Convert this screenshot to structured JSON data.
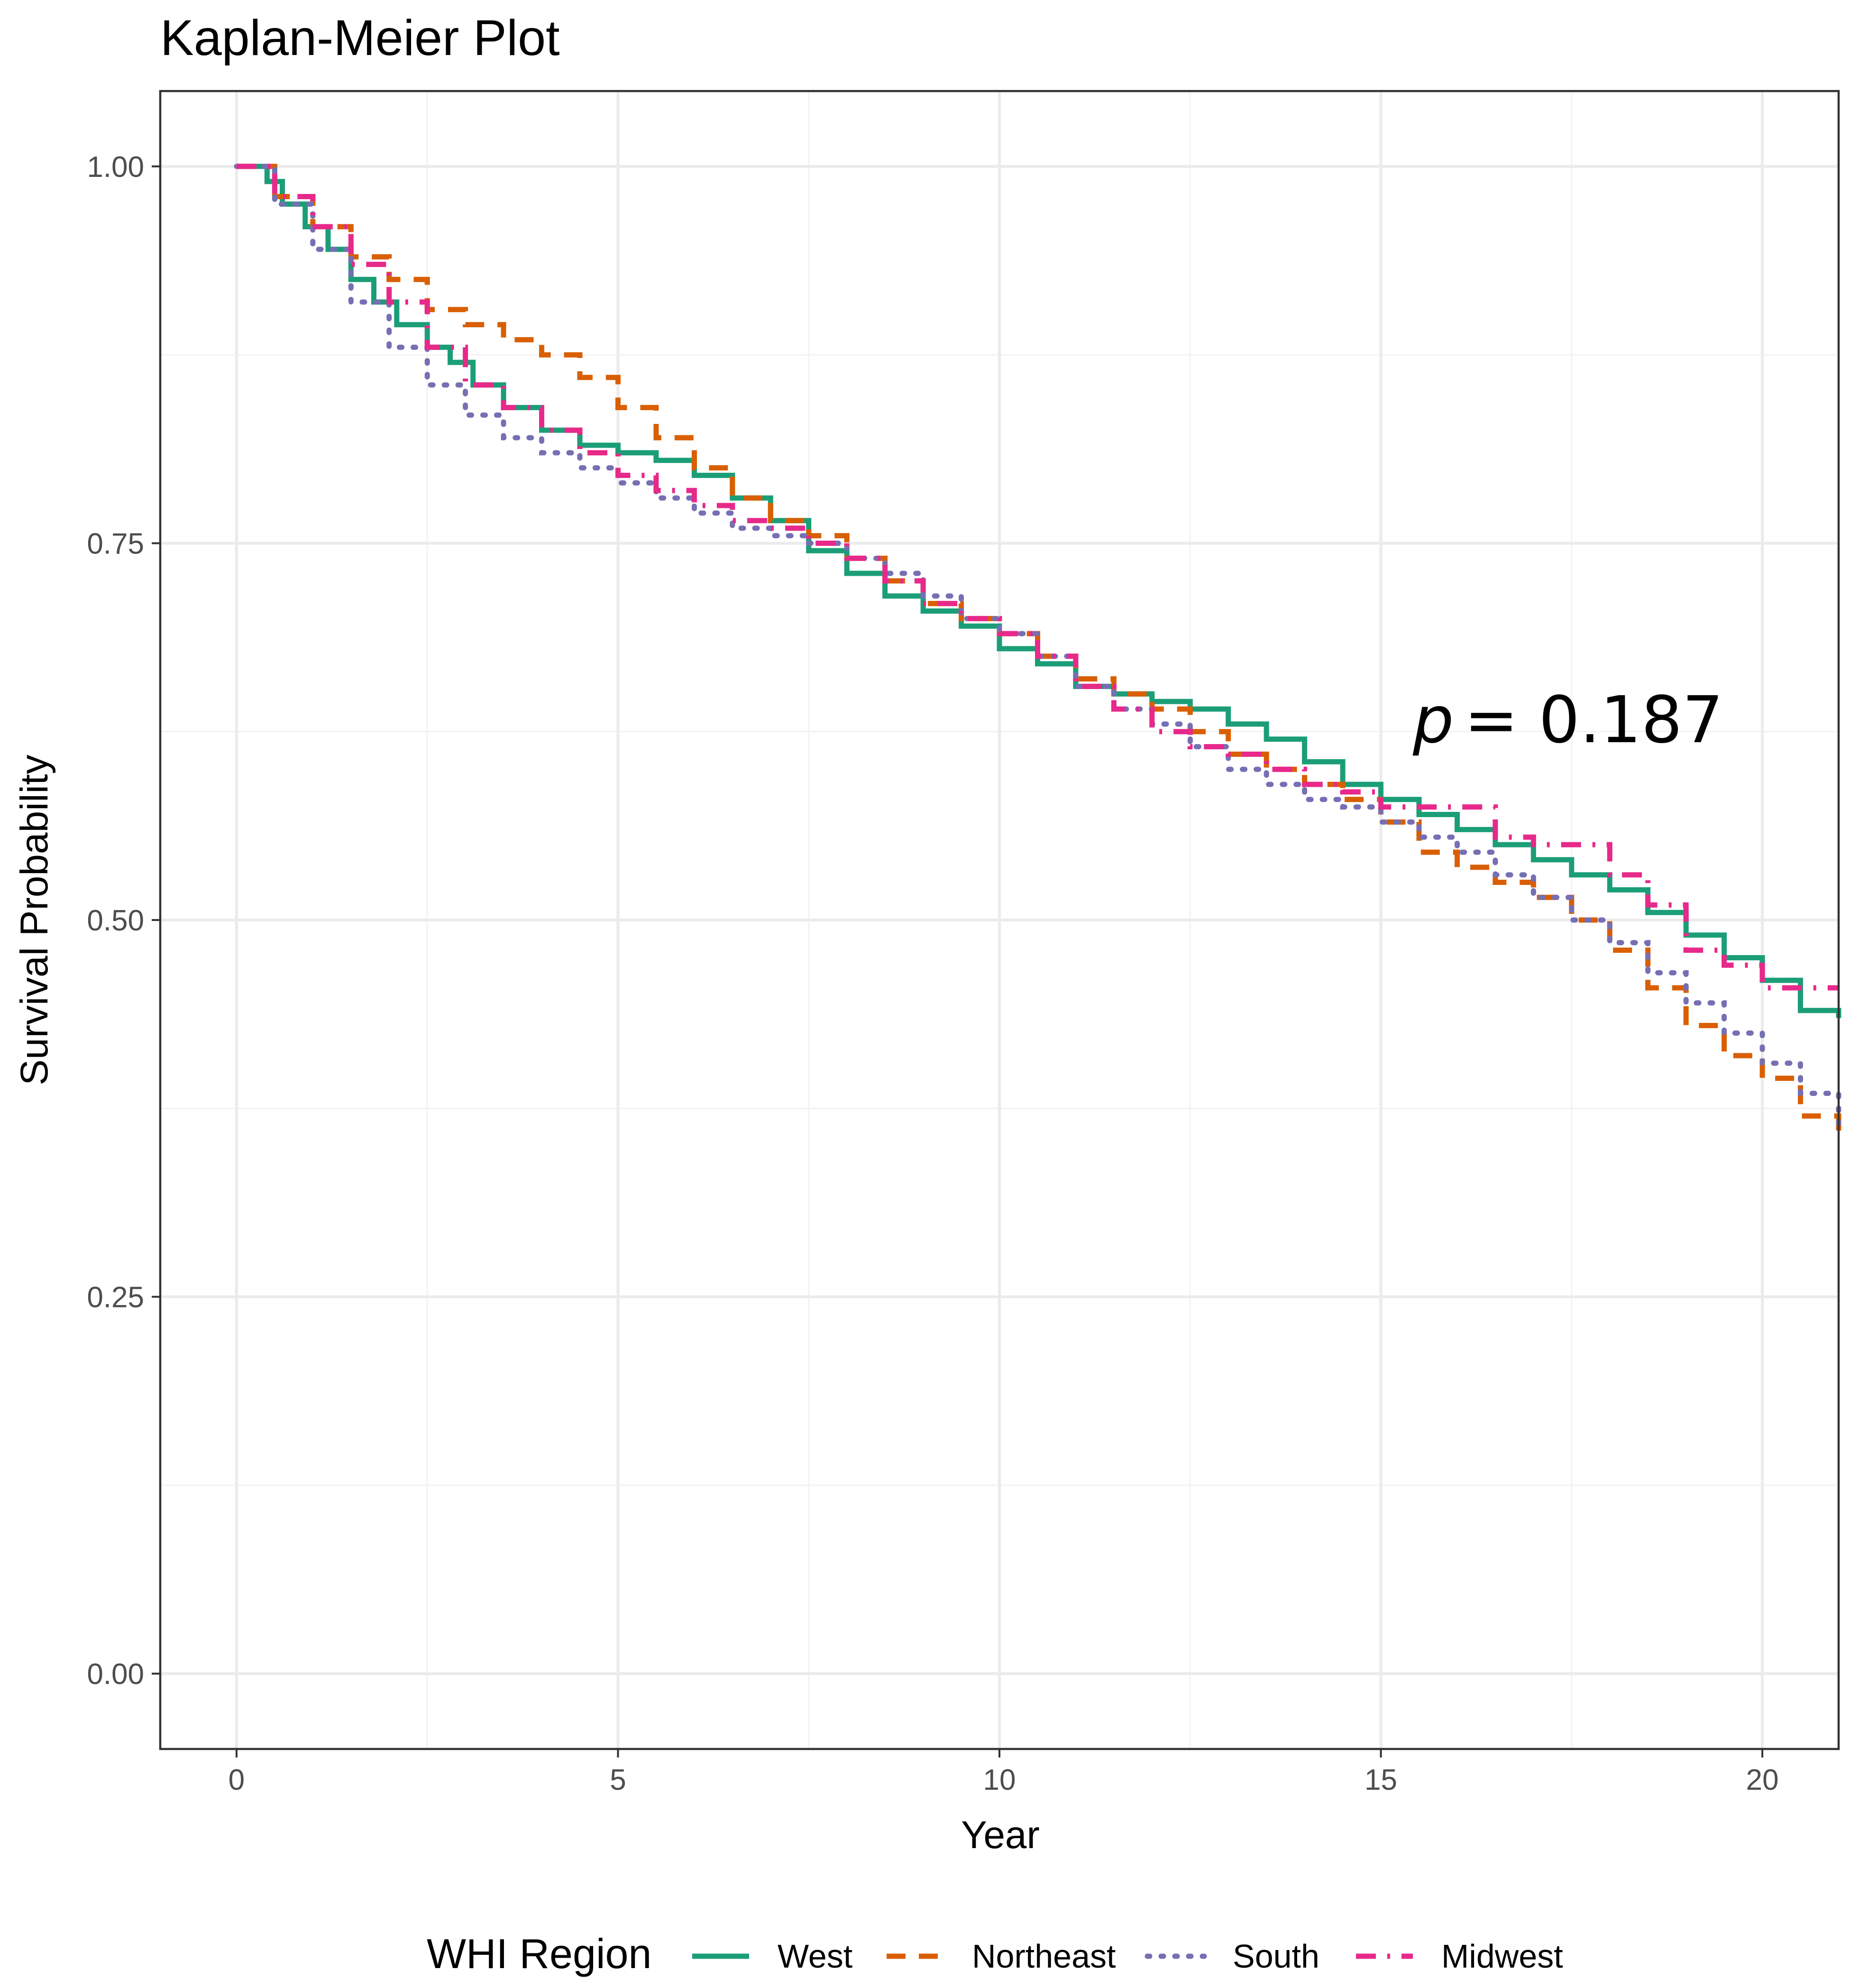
{
  "chart_data": {
    "type": "line",
    "title": "Kaplan-Meier Plot",
    "xlabel": "Year",
    "ylabel": "Survival Probability",
    "xlim": [
      -1,
      21
    ],
    "ylim": [
      -0.05,
      1.05
    ],
    "xticks": [
      0,
      5,
      10,
      15,
      20
    ],
    "xtick_labels": [
      "0",
      "5",
      "10",
      "15",
      "20"
    ],
    "yticks": [
      0,
      0.25,
      0.5,
      0.75,
      1
    ],
    "ytick_labels": [
      "0.00",
      "0.25",
      "0.50",
      "0.75",
      "1.00"
    ],
    "grid": true,
    "step": true,
    "legend": {
      "title": "WHI Region",
      "position": "bottom"
    },
    "annotation": {
      "text": "= 0.187",
      "italic_prefix": "p",
      "x": 15.4,
      "y": 0.61
    },
    "series": [
      {
        "name": "West",
        "color": "#1b9e77",
        "dash": "solid",
        "x": [
          0,
          0.4,
          0.6,
          0.9,
          1.2,
          1.5,
          1.8,
          2.1,
          2.5,
          2.8,
          3.1,
          3.5,
          4.0,
          4.5,
          5.0,
          5.5,
          6.0,
          6.5,
          7.0,
          7.5,
          8.0,
          8.5,
          9.0,
          9.5,
          10.0,
          10.5,
          11.0,
          11.5,
          12.0,
          12.5,
          13.0,
          13.5,
          14.0,
          14.5,
          15.0,
          15.5,
          16.0,
          16.5,
          17.0,
          17.5,
          18.0,
          18.5,
          19.0,
          19.5,
          20.0,
          20.5,
          21
        ],
        "y": [
          1.0,
          0.99,
          0.975,
          0.96,
          0.945,
          0.925,
          0.91,
          0.895,
          0.88,
          0.87,
          0.855,
          0.84,
          0.825,
          0.815,
          0.81,
          0.805,
          0.795,
          0.78,
          0.765,
          0.745,
          0.73,
          0.715,
          0.705,
          0.695,
          0.68,
          0.67,
          0.655,
          0.65,
          0.645,
          0.64,
          0.63,
          0.62,
          0.605,
          0.59,
          0.58,
          0.57,
          0.56,
          0.55,
          0.54,
          0.53,
          0.52,
          0.505,
          0.49,
          0.475,
          0.46,
          0.44,
          0.435
        ]
      },
      {
        "name": "Northeast",
        "color": "#d95f02",
        "dash": "dashed",
        "x": [
          0,
          0.5,
          1.0,
          1.5,
          2.0,
          2.5,
          3.0,
          3.5,
          4.0,
          4.5,
          5.0,
          5.5,
          6.0,
          6.5,
          7.0,
          7.5,
          8.0,
          8.5,
          9.0,
          9.5,
          10.0,
          10.5,
          11.0,
          11.5,
          12.0,
          12.5,
          13.0,
          13.5,
          14.0,
          14.5,
          15.0,
          15.5,
          16.0,
          16.5,
          17.0,
          17.5,
          18.0,
          18.5,
          19.0,
          19.5,
          20.0,
          20.5,
          21
        ],
        "y": [
          1.0,
          0.98,
          0.96,
          0.94,
          0.925,
          0.905,
          0.895,
          0.885,
          0.875,
          0.86,
          0.84,
          0.82,
          0.8,
          0.78,
          0.765,
          0.755,
          0.74,
          0.725,
          0.71,
          0.7,
          0.69,
          0.675,
          0.66,
          0.65,
          0.64,
          0.625,
          0.61,
          0.6,
          0.59,
          0.58,
          0.565,
          0.545,
          0.535,
          0.525,
          0.515,
          0.5,
          0.48,
          0.455,
          0.43,
          0.41,
          0.395,
          0.37,
          0.36
        ]
      },
      {
        "name": "South",
        "color": "#7570b3",
        "dash": "dotted",
        "x": [
          0,
          0.5,
          1.0,
          1.5,
          2.0,
          2.5,
          3.0,
          3.5,
          4.0,
          4.5,
          5.0,
          5.5,
          6.0,
          6.5,
          7.0,
          7.5,
          8.0,
          8.5,
          9.0,
          9.5,
          10.0,
          10.5,
          11.0,
          11.5,
          12.0,
          12.5,
          13.0,
          13.5,
          14.0,
          14.5,
          15.0,
          15.5,
          16.0,
          16.5,
          17.0,
          17.5,
          18.0,
          18.5,
          19.0,
          19.5,
          20.0,
          20.5,
          21
        ],
        "y": [
          1.0,
          0.975,
          0.945,
          0.91,
          0.88,
          0.855,
          0.835,
          0.82,
          0.81,
          0.8,
          0.79,
          0.78,
          0.77,
          0.76,
          0.755,
          0.75,
          0.74,
          0.73,
          0.715,
          0.7,
          0.69,
          0.675,
          0.655,
          0.64,
          0.63,
          0.615,
          0.6,
          0.59,
          0.58,
          0.575,
          0.565,
          0.555,
          0.545,
          0.53,
          0.515,
          0.5,
          0.485,
          0.465,
          0.445,
          0.425,
          0.405,
          0.385,
          0.365
        ]
      },
      {
        "name": "Midwest",
        "color": "#e7298a",
        "dash": "dashdot",
        "x": [
          0,
          0.5,
          1.0,
          1.5,
          2.0,
          2.5,
          3.0,
          3.5,
          4.0,
          4.5,
          5.0,
          5.5,
          6.0,
          6.5,
          7.0,
          7.5,
          8.0,
          8.5,
          9.0,
          9.5,
          10.0,
          10.5,
          11.0,
          11.5,
          12.0,
          12.5,
          13.0,
          13.5,
          14.0,
          14.5,
          15.0,
          15.5,
          16.0,
          16.5,
          17.0,
          17.5,
          18.0,
          18.5,
          19.0,
          19.5,
          20.0,
          20.5,
          21
        ],
        "y": [
          1.0,
          0.98,
          0.96,
          0.935,
          0.91,
          0.88,
          0.855,
          0.84,
          0.825,
          0.81,
          0.795,
          0.785,
          0.775,
          0.765,
          0.76,
          0.75,
          0.74,
          0.725,
          0.71,
          0.7,
          0.69,
          0.675,
          0.655,
          0.64,
          0.625,
          0.615,
          0.61,
          0.6,
          0.59,
          0.585,
          0.575,
          0.575,
          0.575,
          0.555,
          0.55,
          0.55,
          0.53,
          0.51,
          0.48,
          0.47,
          0.455,
          0.455,
          0.455
        ]
      }
    ]
  }
}
